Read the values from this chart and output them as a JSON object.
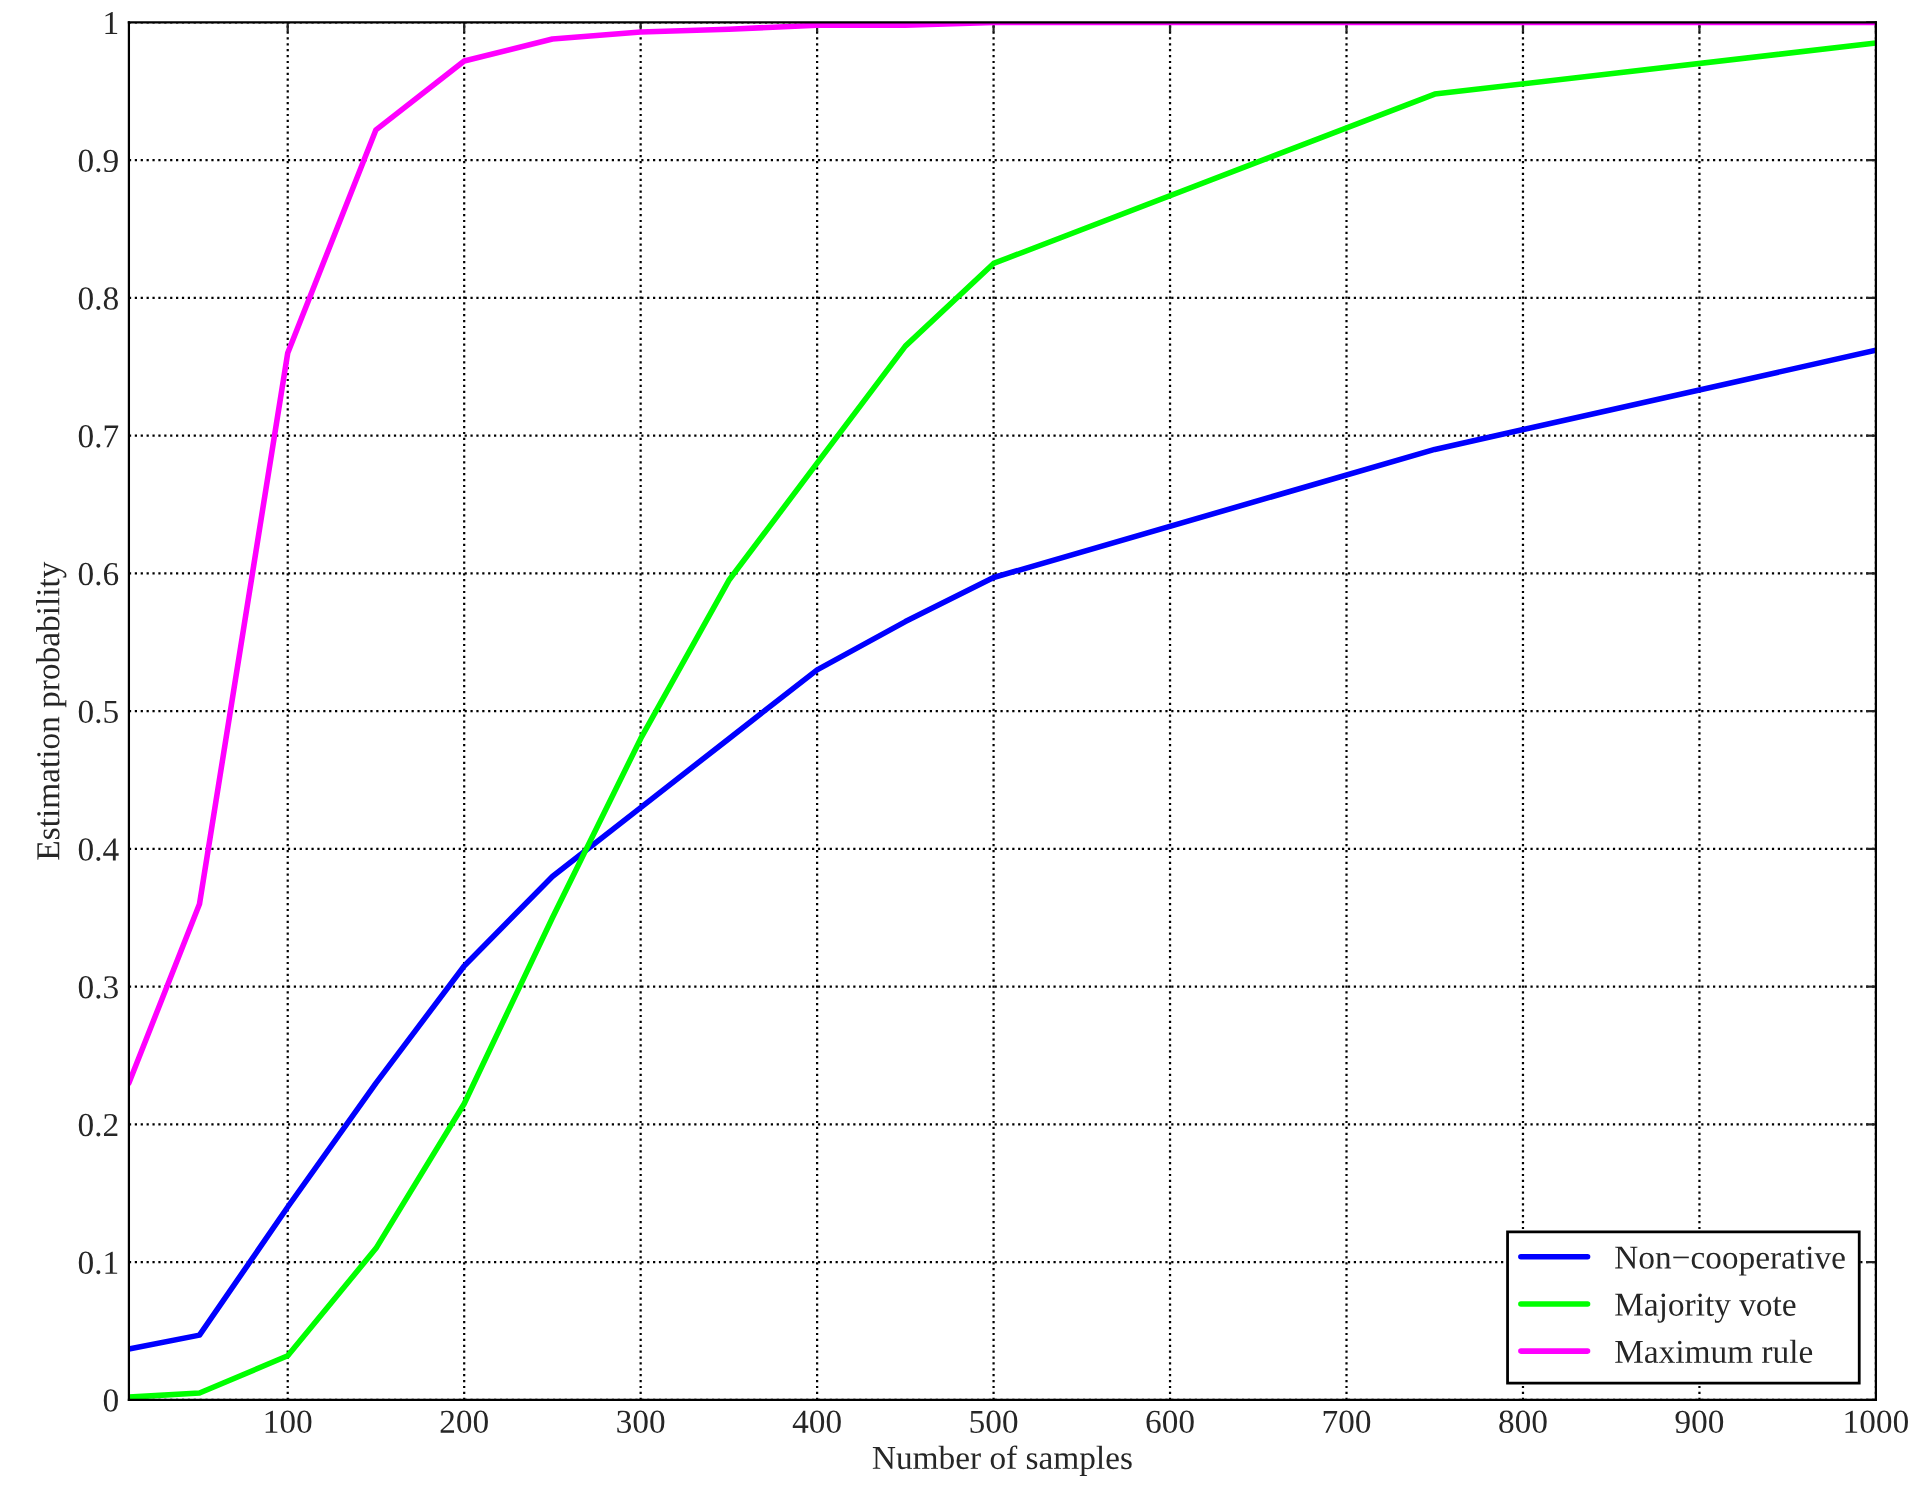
{
  "chart_data": {
    "type": "line",
    "xlabel": "Number of samples",
    "ylabel": "Estimation probability",
    "x": [
      10,
      50,
      100,
      150,
      200,
      250,
      300,
      350,
      400,
      450,
      500,
      750,
      1000
    ],
    "series": [
      {
        "name": "Non−cooperative",
        "color": "#0000ff",
        "values": [
          0.037,
          0.047,
          0.14,
          0.23,
          0.315,
          0.38,
          0.43,
          0.48,
          0.53,
          0.565,
          0.597,
          0.69,
          0.762
        ]
      },
      {
        "name": "Majority vote",
        "color": "#00ff00",
        "values": [
          0.002,
          0.005,
          0.032,
          0.11,
          0.215,
          0.35,
          0.48,
          0.595,
          0.68,
          0.765,
          0.825,
          0.948,
          0.985
        ]
      },
      {
        "name": "Maximum rule",
        "color": "#ff00ff",
        "values": [
          0.23,
          0.36,
          0.76,
          0.922,
          0.972,
          0.988,
          0.993,
          0.995,
          0.998,
          0.998,
          1.0,
          1.0,
          1.0
        ]
      }
    ],
    "xlim": [
      10,
      1000
    ],
    "xticks": [
      100,
      200,
      300,
      400,
      500,
      600,
      700,
      800,
      900,
      1000
    ],
    "ylim": [
      0,
      1
    ],
    "yticks": [
      0,
      0.1,
      0.2,
      0.3,
      0.4,
      0.5,
      0.6,
      0.7,
      0.8,
      0.9,
      1
    ],
    "grid": true,
    "legend": "bottom right",
    "line_style": "solid",
    "marker": "none"
  }
}
